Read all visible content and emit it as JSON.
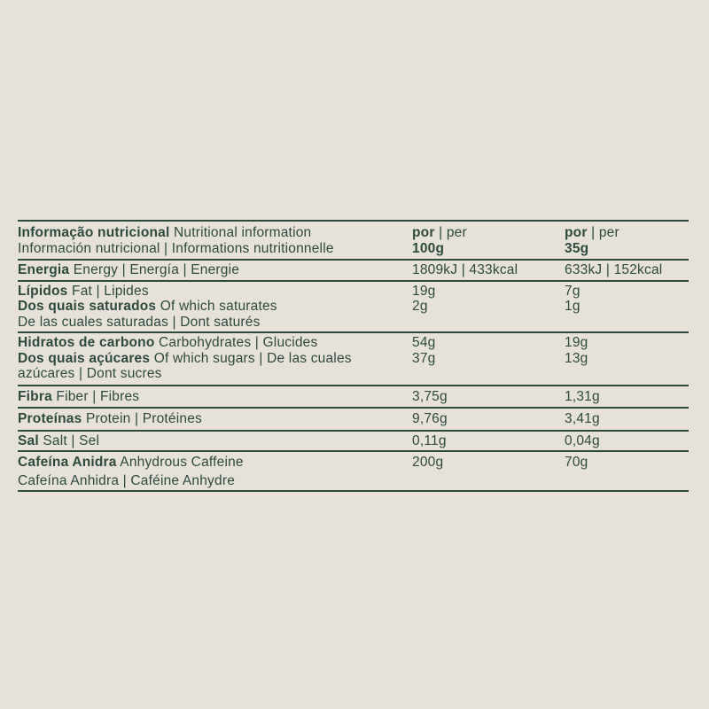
{
  "page": {
    "background_color": "#e6e2da",
    "ink_color": "#2e493d"
  },
  "table": {
    "header": {
      "title_pt": "Informação nutricional",
      "title_rest": " Nutritional information",
      "subtitle": "Información nutricional | Informations nutritionnelle",
      "col100": {
        "per_bold": "por",
        "per_rest": " | per",
        "amount": "100g"
      },
      "col35": {
        "per_bold": "por",
        "per_rest": " | per",
        "amount": "35g"
      }
    },
    "rows": [
      {
        "id": "energy",
        "lines": [
          {
            "bold": "Energia",
            "rest": " Energy | Energía | Energie",
            "v100": "1809kJ | 433kcal",
            "v35": "633kJ | 152kcal"
          }
        ]
      },
      {
        "id": "fat",
        "lines": [
          {
            "bold": "Lípidos",
            "rest": " Fat | Lipides",
            "v100": "19g",
            "v35": "7g"
          },
          {
            "bold": "Dos quais saturados",
            "rest": " Of which saturates",
            "v100": "2g",
            "v35": "1g"
          },
          {
            "bold": "",
            "rest": "De las cuales saturadas | Dont saturés",
            "v100": "",
            "v35": ""
          }
        ]
      },
      {
        "id": "carbohydrates",
        "lines": [
          {
            "bold": "Hidratos de carbono",
            "rest": " Carbohydrates | Glucides",
            "v100": "54g",
            "v35": "19g"
          },
          {
            "bold": "Dos quais açúcares",
            "rest": " Of which sugars | De las cuales",
            "v100": "37g",
            "v35": "13g"
          },
          {
            "bold": "",
            "rest": "azúcares | Dont sucres",
            "v100": "",
            "v35": ""
          }
        ]
      },
      {
        "id": "fiber",
        "lines": [
          {
            "bold": "Fibra",
            "rest": " Fiber | Fibres",
            "v100": "3,75g",
            "v35": "1,31g"
          }
        ]
      },
      {
        "id": "protein",
        "lines": [
          {
            "bold": "Proteínas",
            "rest": " Protein | Protéines",
            "v100": "9,76g",
            "v35": "3,41g"
          }
        ]
      },
      {
        "id": "salt",
        "lines": [
          {
            "bold": "Sal",
            "rest": " Salt | Sel",
            "v100": "0,11g",
            "v35": "0,04g"
          }
        ]
      },
      {
        "id": "caffeine",
        "lines": [
          {
            "bold": "Cafeína Anidra",
            "rest": " Anhydrous Caffeine",
            "v100": "200g",
            "v35": "70g"
          },
          {
            "bold": "",
            "rest": "Cafeína Anhidra | Caféine Anhydre",
            "v100": "",
            "v35": ""
          }
        ]
      }
    ]
  }
}
